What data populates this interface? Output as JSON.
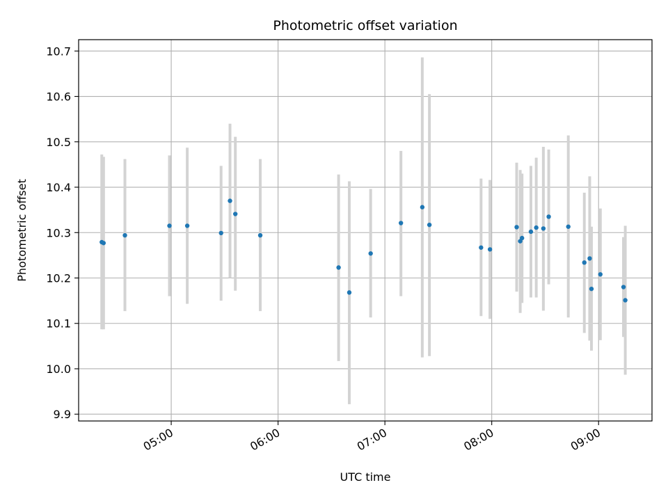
{
  "chart_data": {
    "type": "scatter",
    "title": "Photometric offset variation",
    "xlabel": "UTC time",
    "ylabel": "Photometric offset",
    "xlim": [
      "04:08",
      "09:30"
    ],
    "ylim": [
      9.885,
      10.725
    ],
    "x_ticks": [
      "05:00",
      "06:00",
      "07:00",
      "08:00",
      "09:00"
    ],
    "y_ticks": [
      "9.9",
      "10.0",
      "10.1",
      "10.2",
      "10.3",
      "10.4",
      "10.5",
      "10.6",
      "10.7"
    ],
    "grid": true,
    "colors": {
      "point": "#1f77b4",
      "errorbar": "#d3d3d3",
      "grid": "#b0b0b0"
    },
    "points": [
      {
        "x": "04:21",
        "y": 10.279,
        "low": 10.087,
        "high": 10.472
      },
      {
        "x": "04:22",
        "y": 10.277,
        "low": 10.087,
        "high": 10.467
      },
      {
        "x": "04:34",
        "y": 10.294,
        "low": 10.127,
        "high": 10.462
      },
      {
        "x": "04:59",
        "y": 10.315,
        "low": 10.16,
        "high": 10.47
      },
      {
        "x": "05:09",
        "y": 10.315,
        "low": 10.143,
        "high": 10.487
      },
      {
        "x": "05:28",
        "y": 10.299,
        "low": 10.15,
        "high": 10.447
      },
      {
        "x": "05:33",
        "y": 10.37,
        "low": 10.2,
        "high": 10.54
      },
      {
        "x": "05:36",
        "y": 10.341,
        "low": 10.172,
        "high": 10.511
      },
      {
        "x": "05:50",
        "y": 10.294,
        "low": 10.127,
        "high": 10.462
      },
      {
        "x": "06:34",
        "y": 10.223,
        "low": 10.017,
        "high": 10.428
      },
      {
        "x": "06:40",
        "y": 10.168,
        "low": 9.922,
        "high": 10.413
      },
      {
        "x": "06:52",
        "y": 10.254,
        "low": 10.113,
        "high": 10.396
      },
      {
        "x": "07:09",
        "y": 10.321,
        "low": 10.16,
        "high": 10.48
      },
      {
        "x": "07:21",
        "y": 10.356,
        "low": 10.025,
        "high": 10.686
      },
      {
        "x": "07:25",
        "y": 10.317,
        "low": 10.028,
        "high": 10.605
      },
      {
        "x": "07:54",
        "y": 10.267,
        "low": 10.116,
        "high": 10.419
      },
      {
        "x": "07:59",
        "y": 10.263,
        "low": 10.11,
        "high": 10.416
      },
      {
        "x": "08:14",
        "y": 10.312,
        "low": 10.17,
        "high": 10.454
      },
      {
        "x": "08:16",
        "y": 10.281,
        "low": 10.123,
        "high": 10.438
      },
      {
        "x": "08:17",
        "y": 10.288,
        "low": 10.145,
        "high": 10.43
      },
      {
        "x": "08:22",
        "y": 10.302,
        "low": 10.157,
        "high": 10.447
      },
      {
        "x": "08:25",
        "y": 10.311,
        "low": 10.157,
        "high": 10.465
      },
      {
        "x": "08:29",
        "y": 10.309,
        "low": 10.128,
        "high": 10.489
      },
      {
        "x": "08:32",
        "y": 10.335,
        "low": 10.186,
        "high": 10.483
      },
      {
        "x": "08:43",
        "y": 10.313,
        "low": 10.113,
        "high": 10.514
      },
      {
        "x": "08:52",
        "y": 10.234,
        "low": 10.079,
        "high": 10.388
      },
      {
        "x": "08:55",
        "y": 10.243,
        "low": 10.062,
        "high": 10.424
      },
      {
        "x": "08:56",
        "y": 10.176,
        "low": 10.04,
        "high": 10.313
      },
      {
        "x": "09:01",
        "y": 10.208,
        "low": 10.063,
        "high": 10.353
      },
      {
        "x": "09:14",
        "y": 10.18,
        "low": 10.07,
        "high": 10.29
      },
      {
        "x": "09:15",
        "y": 10.151,
        "low": 9.987,
        "high": 10.315
      }
    ]
  }
}
